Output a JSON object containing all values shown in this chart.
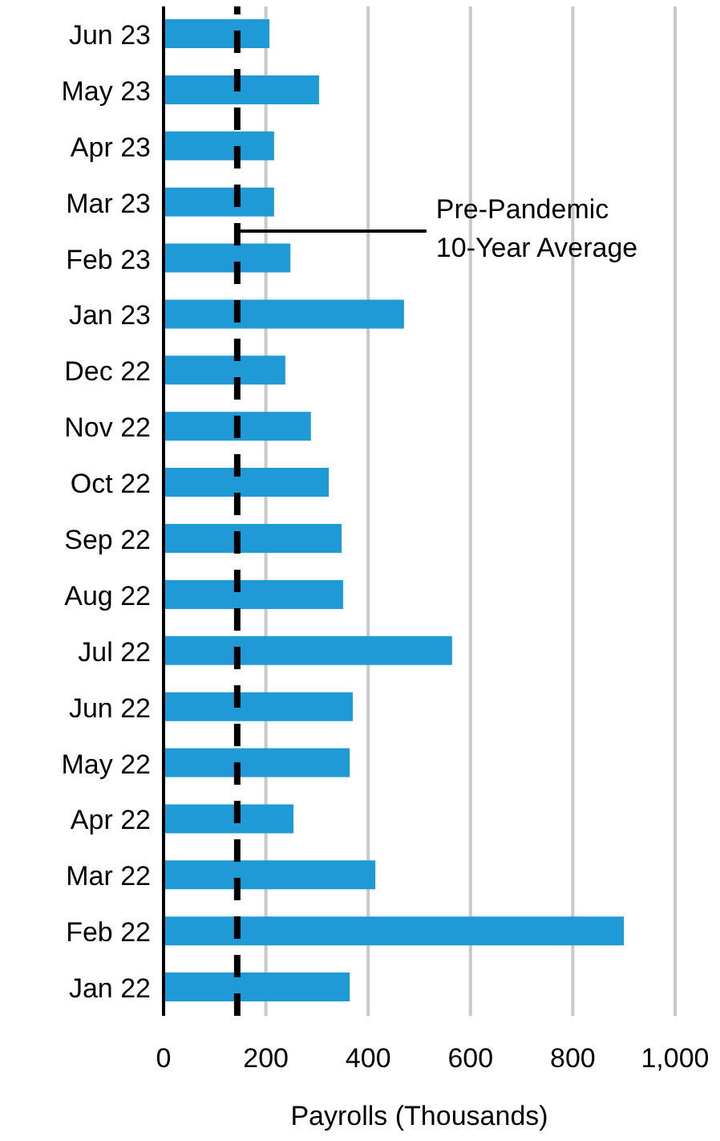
{
  "chart_data": {
    "type": "bar",
    "orientation": "horizontal",
    "xlabel": "Payrolls (Thousands)",
    "categories": [
      "Jun 23",
      "May 23",
      "Apr 23",
      "Mar 23",
      "Feb 23",
      "Jan 23",
      "Dec 22",
      "Nov 22",
      "Oct 22",
      "Sep 22",
      "Aug 22",
      "Jul 22",
      "Jun 22",
      "May 22",
      "Apr 22",
      "Mar 22",
      "Feb 22",
      "Jan 22"
    ],
    "values": [
      207,
      304,
      216,
      216,
      248,
      470,
      238,
      288,
      323,
      348,
      351,
      564,
      370,
      364,
      254,
      414,
      900,
      364
    ],
    "color": "#1f9ad6",
    "xlim": [
      0,
      1000
    ],
    "xticks": [
      0,
      200,
      400,
      600,
      800,
      {
        "value": 1000,
        "label": "1,000"
      }
    ],
    "grid": "x",
    "ref_lines": [
      {
        "axis": "x",
        "value": 144,
        "label": "Pre-Pandemic\n10-Year Average",
        "color": "#000000",
        "line_style": "dashed"
      }
    ]
  }
}
